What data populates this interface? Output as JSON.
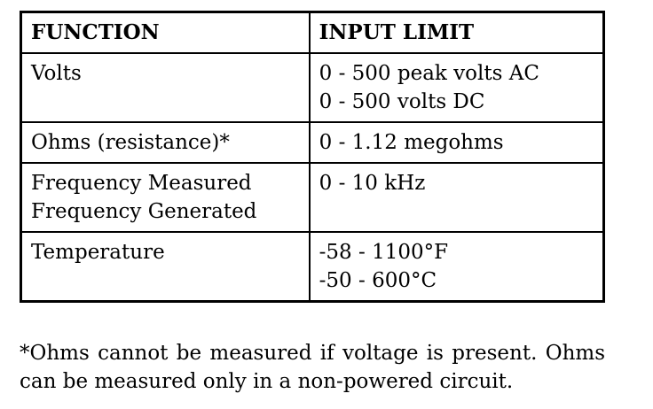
{
  "table": {
    "headers": [
      "FUNCTION",
      "INPUT LIMIT"
    ],
    "rows": [
      {
        "function": [
          "Volts"
        ],
        "limit": [
          "0 - 500 peak volts AC",
          "0 - 500 volts DC"
        ]
      },
      {
        "function": [
          "Ohms (resistance)*"
        ],
        "limit": [
          "0 - 1.12 megohms"
        ]
      },
      {
        "function": [
          "Frequency Measured",
          "Frequency Generated"
        ],
        "limit": [
          "0 - 10 kHz"
        ]
      },
      {
        "function": [
          "Temperature"
        ],
        "limit": [
          "-58 - 1100°F",
          "-50 - 600°C"
        ]
      }
    ]
  },
  "footnote": "*Ohms cannot be measured if voltage is present. Ohms can be measured only in a non-powered circuit."
}
